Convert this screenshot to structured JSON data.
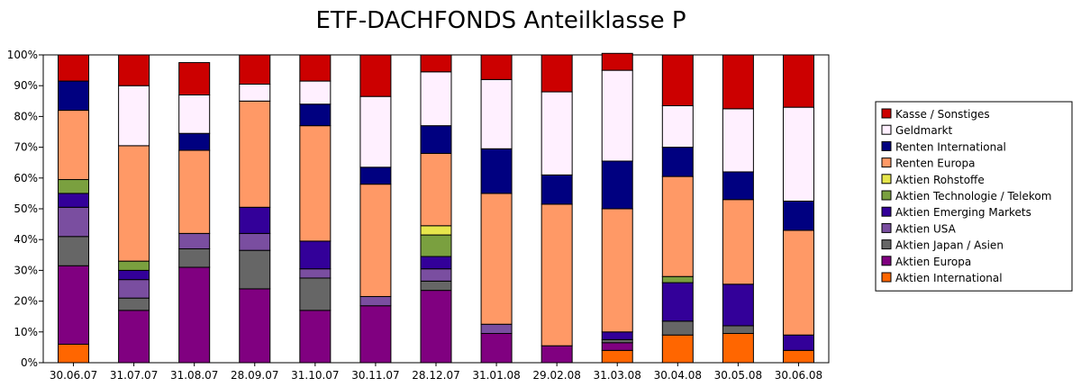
{
  "chart_data": {
    "type": "bar",
    "stacked": true,
    "percent": true,
    "title": "ETF-DACHFONDS Anteilklasse P",
    "xlabel": "",
    "ylabel": "",
    "ylim": [
      0,
      100
    ],
    "yticks": [
      "0%",
      "10%",
      "20%",
      "30%",
      "40%",
      "50%",
      "60%",
      "70%",
      "80%",
      "90%",
      "100%"
    ],
    "grid": false,
    "legend_position": "right",
    "categories": [
      "30.06.07",
      "31.07.07",
      "31.08.07",
      "28.09.07",
      "31.10.07",
      "30.11.07",
      "28.12.07",
      "31.01.08",
      "29.02.08",
      "31.03.08",
      "30.04.08",
      "30.05.08",
      "30.06.08"
    ],
    "series": [
      {
        "name": "Aktien International",
        "color": "#ff6600",
        "values": [
          6,
          0,
          0,
          0,
          0,
          0,
          0,
          0,
          0,
          4,
          9,
          9.5,
          4
        ]
      },
      {
        "name": "Aktien Europa",
        "color": "#800080",
        "values": [
          25.5,
          17,
          31,
          24,
          17,
          18.5,
          23.5,
          9.5,
          5.5,
          2.5,
          0,
          0,
          0
        ]
      },
      {
        "name": "Aktien Japan / Asien",
        "color": "#666666",
        "values": [
          9.5,
          4,
          6,
          12.5,
          10.5,
          0,
          3,
          0,
          0,
          1,
          4.5,
          2.5,
          0
        ]
      },
      {
        "name": "Aktien USA",
        "color": "#7a4ea0",
        "values": [
          9.5,
          6,
          5,
          5.5,
          3,
          3,
          4,
          3,
          0,
          0,
          0,
          0,
          0
        ]
      },
      {
        "name": "Aktien Emerging Markets",
        "color": "#330099",
        "values": [
          4.5,
          3,
          0,
          8.5,
          9,
          0,
          4,
          0,
          0,
          2.5,
          12.5,
          13.5,
          5
        ]
      },
      {
        "name": "Aktien Technologie / Telekom",
        "color": "#7aa03f",
        "values": [
          4.5,
          3,
          0,
          0,
          0,
          0,
          7,
          0,
          0,
          0,
          2,
          0,
          0
        ]
      },
      {
        "name": "Aktien Rohstoffe",
        "color": "#e6e64c",
        "values": [
          0,
          0,
          0,
          0,
          0,
          0,
          3,
          0,
          0,
          0,
          0,
          0,
          0
        ]
      },
      {
        "name": "Renten Europa",
        "color": "#ff9966",
        "values": [
          22.5,
          37.5,
          27,
          34.5,
          37.5,
          36.5,
          23.5,
          42.5,
          46,
          40,
          32.5,
          27.5,
          34
        ]
      },
      {
        "name": "Renten International",
        "color": "#000080",
        "values": [
          9.5,
          0,
          5.5,
          0,
          7,
          5.5,
          9,
          14.5,
          9.5,
          15.5,
          9.5,
          9,
          9.5
        ]
      },
      {
        "name": "Geldmarkt",
        "color": "#fff0ff",
        "values": [
          0,
          19.5,
          12.5,
          5.5,
          7.5,
          23,
          17.5,
          22.5,
          27,
          29.5,
          13.5,
          20.5,
          30.5
        ]
      },
      {
        "name": "Kasse / Sonstiges",
        "color": "#cc0000",
        "values": [
          8.5,
          10,
          10.5,
          9.5,
          8.5,
          13.5,
          5.5,
          8,
          12,
          5.5,
          16.5,
          17.5,
          17
        ]
      }
    ],
    "legend_order": [
      "Kasse / Sonstiges",
      "Geldmarkt",
      "Renten International",
      "Renten Europa",
      "Aktien Rohstoffe",
      "Aktien Technologie / Telekom",
      "Aktien Emerging Markets",
      "Aktien USA",
      "Aktien Japan / Asien",
      "Aktien Europa",
      "Aktien International"
    ]
  }
}
